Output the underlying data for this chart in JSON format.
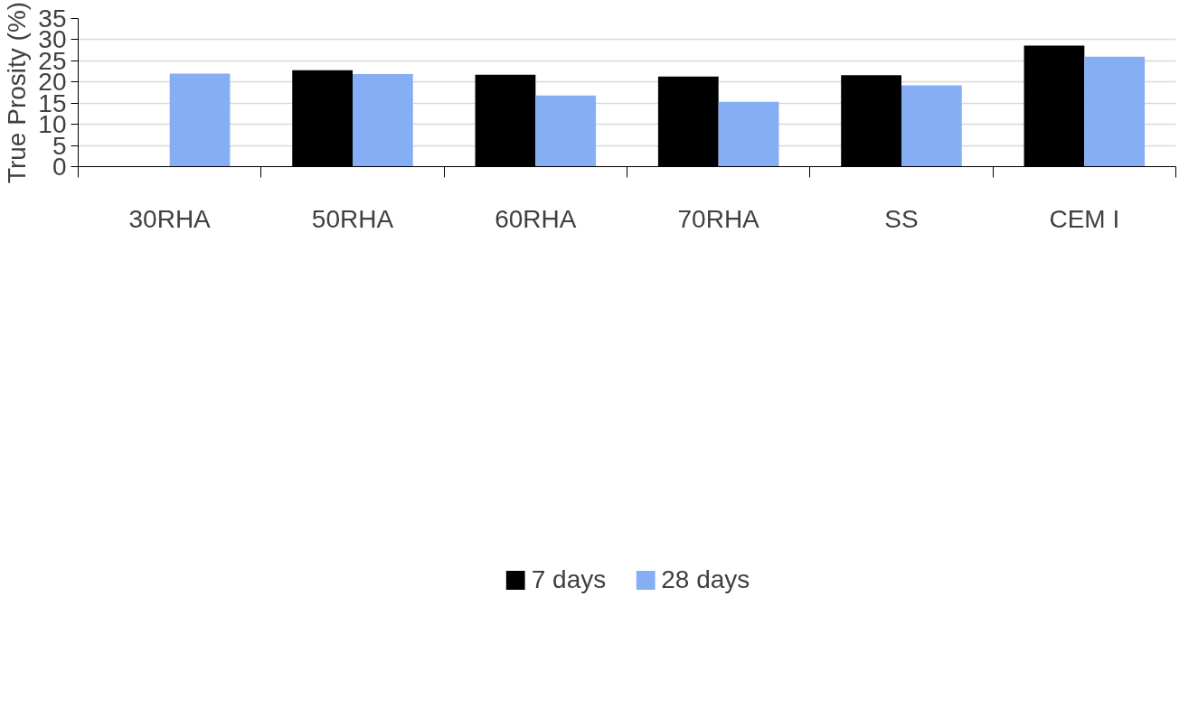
{
  "chart_data": {
    "type": "bar",
    "ylabel": "True Prosity (%)",
    "categories": [
      "30RHA",
      "50RHA",
      "60RHA",
      "70RHA",
      "SS",
      "CEM I"
    ],
    "series": [
      {
        "name": "7 days",
        "color": "#000000",
        "values": [
          null,
          22.8,
          21.7,
          21.3,
          21.6,
          28.6
        ]
      },
      {
        "name": "28 days",
        "color": "#86aef5",
        "values": [
          22.0,
          21.9,
          16.8,
          15.3,
          19.2,
          26.0
        ]
      }
    ],
    "ylim": [
      0,
      35
    ],
    "yticks": [
      0,
      5,
      10,
      15,
      20,
      25,
      30,
      35
    ],
    "grid": "y",
    "legend": "bottom"
  }
}
